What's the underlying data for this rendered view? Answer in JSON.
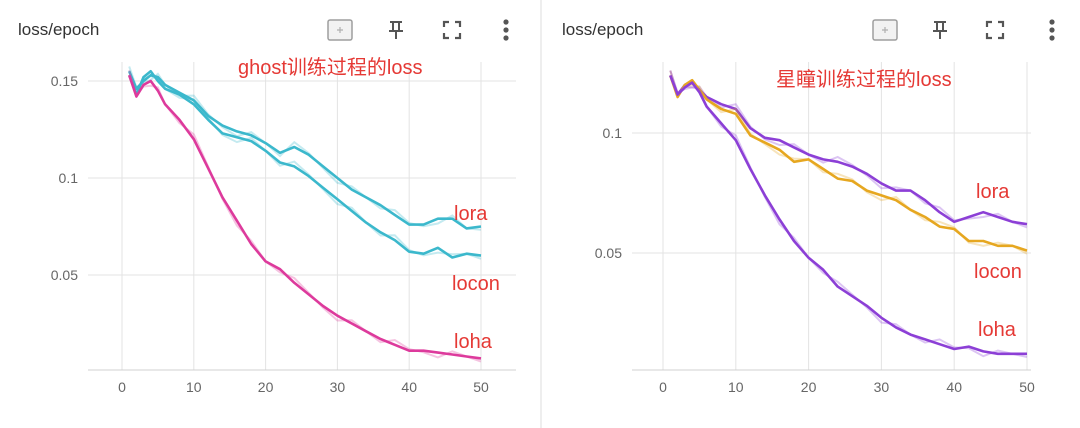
{
  "colors": {
    "lora_ghost": "#3bb8cc",
    "locon_ghost": "#3bb8cc",
    "loha_ghost": "#dd3a9c",
    "lora_xt": "#8c3fd6",
    "locon_xt": "#e6a720",
    "loha_xt": "#8c3fd6",
    "annotation": "#e53935",
    "grid": "#e3e3e3"
  },
  "cards": [
    {
      "title": "loss/epoch",
      "icons": [
        "fit-domain-icon",
        "pin-icon",
        "fullscreen-icon",
        "more-vert-icon"
      ]
    },
    {
      "title": "loss/epoch",
      "icons": [
        "fit-domain-icon",
        "pin-icon",
        "fullscreen-icon",
        "more-vert-icon"
      ]
    }
  ],
  "chart_data": [
    {
      "type": "line",
      "title": "ghost训练过程的loss",
      "xlim": [
        -5,
        55
      ],
      "ylim": [
        0.0,
        0.158
      ],
      "xticks": [
        0,
        10,
        20,
        30,
        40,
        50
      ],
      "yticks": [
        0.05,
        0.1,
        0.15
      ],
      "ytick_labels": [
        "0.05",
        "0.1",
        "0.15"
      ],
      "series": [
        {
          "name": "lora",
          "x": [
            1,
            2,
            3,
            4,
            5,
            6,
            8,
            10,
            12,
            14,
            16,
            18,
            20,
            22,
            24,
            26,
            28,
            30,
            32,
            34,
            36,
            38,
            40,
            42,
            44,
            46,
            48,
            50
          ],
          "values": [
            0.155,
            0.146,
            0.15,
            0.153,
            0.152,
            0.148,
            0.144,
            0.14,
            0.132,
            0.127,
            0.124,
            0.122,
            0.118,
            0.113,
            0.116,
            0.112,
            0.106,
            0.1,
            0.094,
            0.09,
            0.086,
            0.081,
            0.076,
            0.076,
            0.079,
            0.079,
            0.074,
            0.075
          ]
        },
        {
          "name": "locon",
          "x": [
            1,
            2,
            3,
            4,
            5,
            6,
            8,
            10,
            12,
            14,
            16,
            18,
            20,
            22,
            24,
            26,
            28,
            30,
            32,
            34,
            36,
            38,
            40,
            42,
            44,
            46,
            48,
            50
          ],
          "values": [
            0.153,
            0.143,
            0.152,
            0.155,
            0.15,
            0.146,
            0.143,
            0.138,
            0.13,
            0.123,
            0.121,
            0.119,
            0.114,
            0.108,
            0.106,
            0.101,
            0.095,
            0.089,
            0.083,
            0.077,
            0.072,
            0.068,
            0.062,
            0.061,
            0.064,
            0.059,
            0.061,
            0.06
          ]
        },
        {
          "name": "loha",
          "x": [
            1,
            2,
            3,
            4,
            5,
            6,
            8,
            10,
            12,
            14,
            16,
            18,
            20,
            22,
            24,
            26,
            28,
            30,
            32,
            34,
            36,
            38,
            40,
            42,
            44,
            46,
            48,
            50
          ],
          "values": [
            0.153,
            0.142,
            0.148,
            0.15,
            0.145,
            0.138,
            0.13,
            0.12,
            0.105,
            0.09,
            0.078,
            0.066,
            0.057,
            0.053,
            0.046,
            0.04,
            0.034,
            0.029,
            0.025,
            0.021,
            0.017,
            0.014,
            0.011,
            0.011,
            0.01,
            0.009,
            0.008,
            0.007
          ]
        }
      ],
      "labels": [
        "lora",
        "locon",
        "loha"
      ]
    },
    {
      "type": "line",
      "title": "星瞳训练过程的loss",
      "xlim": [
        -5,
        55
      ],
      "ylim": [
        0.0,
        0.128
      ],
      "xticks": [
        0,
        10,
        20,
        30,
        40,
        50
      ],
      "yticks": [
        0.05,
        0.1
      ],
      "ytick_labels": [
        "0.05",
        "0.1"
      ],
      "series": [
        {
          "name": "lora",
          "x": [
            1,
            2,
            3,
            4,
            5,
            6,
            8,
            10,
            12,
            14,
            16,
            18,
            20,
            22,
            24,
            26,
            28,
            30,
            32,
            34,
            36,
            38,
            40,
            42,
            44,
            46,
            48,
            50
          ],
          "values": [
            0.124,
            0.116,
            0.12,
            0.121,
            0.118,
            0.115,
            0.112,
            0.11,
            0.102,
            0.098,
            0.097,
            0.094,
            0.091,
            0.089,
            0.088,
            0.086,
            0.083,
            0.079,
            0.076,
            0.076,
            0.072,
            0.067,
            0.063,
            0.065,
            0.067,
            0.065,
            0.063,
            0.062
          ]
        },
        {
          "name": "locon",
          "x": [
            1,
            2,
            3,
            4,
            5,
            6,
            8,
            10,
            12,
            14,
            16,
            18,
            20,
            22,
            24,
            26,
            28,
            30,
            32,
            34,
            36,
            38,
            40,
            42,
            44,
            46,
            48,
            50
          ],
          "values": [
            0.124,
            0.115,
            0.12,
            0.122,
            0.118,
            0.114,
            0.11,
            0.108,
            0.099,
            0.096,
            0.093,
            0.088,
            0.089,
            0.085,
            0.081,
            0.08,
            0.076,
            0.074,
            0.072,
            0.068,
            0.065,
            0.061,
            0.06,
            0.055,
            0.055,
            0.053,
            0.053,
            0.051
          ]
        },
        {
          "name": "loha",
          "x": [
            1,
            2,
            3,
            4,
            5,
            6,
            8,
            10,
            12,
            14,
            16,
            18,
            20,
            22,
            24,
            26,
            28,
            30,
            32,
            34,
            36,
            38,
            40,
            42,
            44,
            46,
            48,
            50
          ],
          "values": [
            0.124,
            0.116,
            0.119,
            0.121,
            0.117,
            0.111,
            0.104,
            0.097,
            0.085,
            0.074,
            0.064,
            0.055,
            0.048,
            0.043,
            0.036,
            0.032,
            0.028,
            0.023,
            0.019,
            0.016,
            0.014,
            0.012,
            0.01,
            0.011,
            0.009,
            0.008,
            0.008,
            0.008
          ]
        }
      ],
      "labels": [
        "lora",
        "locon",
        "loha"
      ]
    }
  ]
}
